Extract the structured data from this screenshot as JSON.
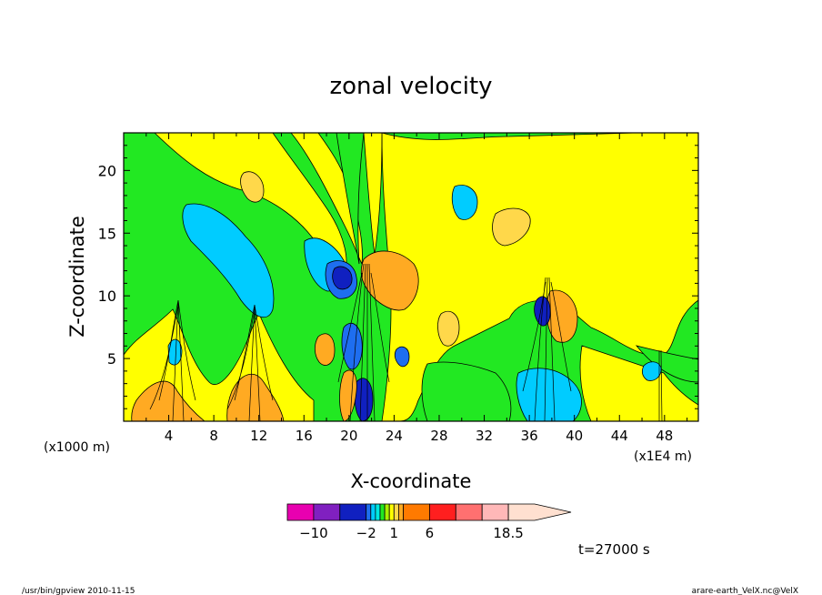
{
  "chart_data": {
    "type": "heatmap",
    "title": "zonal velocity",
    "xlabel": "X-coordinate",
    "ylabel": "Z-coordinate",
    "x_unit_left": "(x1000 m)",
    "x_unit_right": "(x1E4 m)",
    "xlim": [
      0,
      51
    ],
    "ylim": [
      0,
      23
    ],
    "x_ticks": [
      4,
      8,
      12,
      16,
      20,
      24,
      28,
      32,
      36,
      40,
      44,
      48
    ],
    "y_ticks": [
      5,
      10,
      15,
      20
    ],
    "colorbar": {
      "levels": [
        -14,
        -10,
        -6,
        -2,
        -1.5,
        -1,
        -0.5,
        0,
        0.5,
        1,
        1.5,
        2,
        6,
        10,
        14,
        18.5,
        22
      ],
      "colors": [
        "#e800b0",
        "#8020c0",
        "#1020c0",
        "#1e6ef0",
        "#00ccff",
        "#00e8e0",
        "#22e822",
        "#aaf000",
        "#ffff00",
        "#ffd84a",
        "#ffaa22",
        "#ff7a00",
        "#ff1f1f",
        "#ff7070",
        "#ffb8b8",
        "#ffe0d0"
      ],
      "labels": [
        {
          "value": -10,
          "text": "−10"
        },
        {
          "value": -2,
          "text": "−2"
        },
        {
          "value": 1,
          "text": "1"
        },
        {
          "value": 6,
          "text": "6"
        },
        {
          "value": 18.5,
          "text": "18.5"
        }
      ]
    },
    "features": [
      {
        "x": 4.8,
        "z_top": 9.7,
        "kind": "plume"
      },
      {
        "x": 11.8,
        "z_top": 9.3,
        "kind": "plume"
      },
      {
        "x": 21.3,
        "z_top": 12.5,
        "kind": "plume"
      },
      {
        "x": 37.6,
        "z_top": 11.2,
        "kind": "plume"
      },
      {
        "x": 47.6,
        "z_top": 5.5,
        "kind": "plume"
      }
    ]
  },
  "time_label": "t=27000 s",
  "footer_left": "/usr/bin/gpview   2010-11-15",
  "footer_right": "arare-earth_VelX.nc@VelX"
}
